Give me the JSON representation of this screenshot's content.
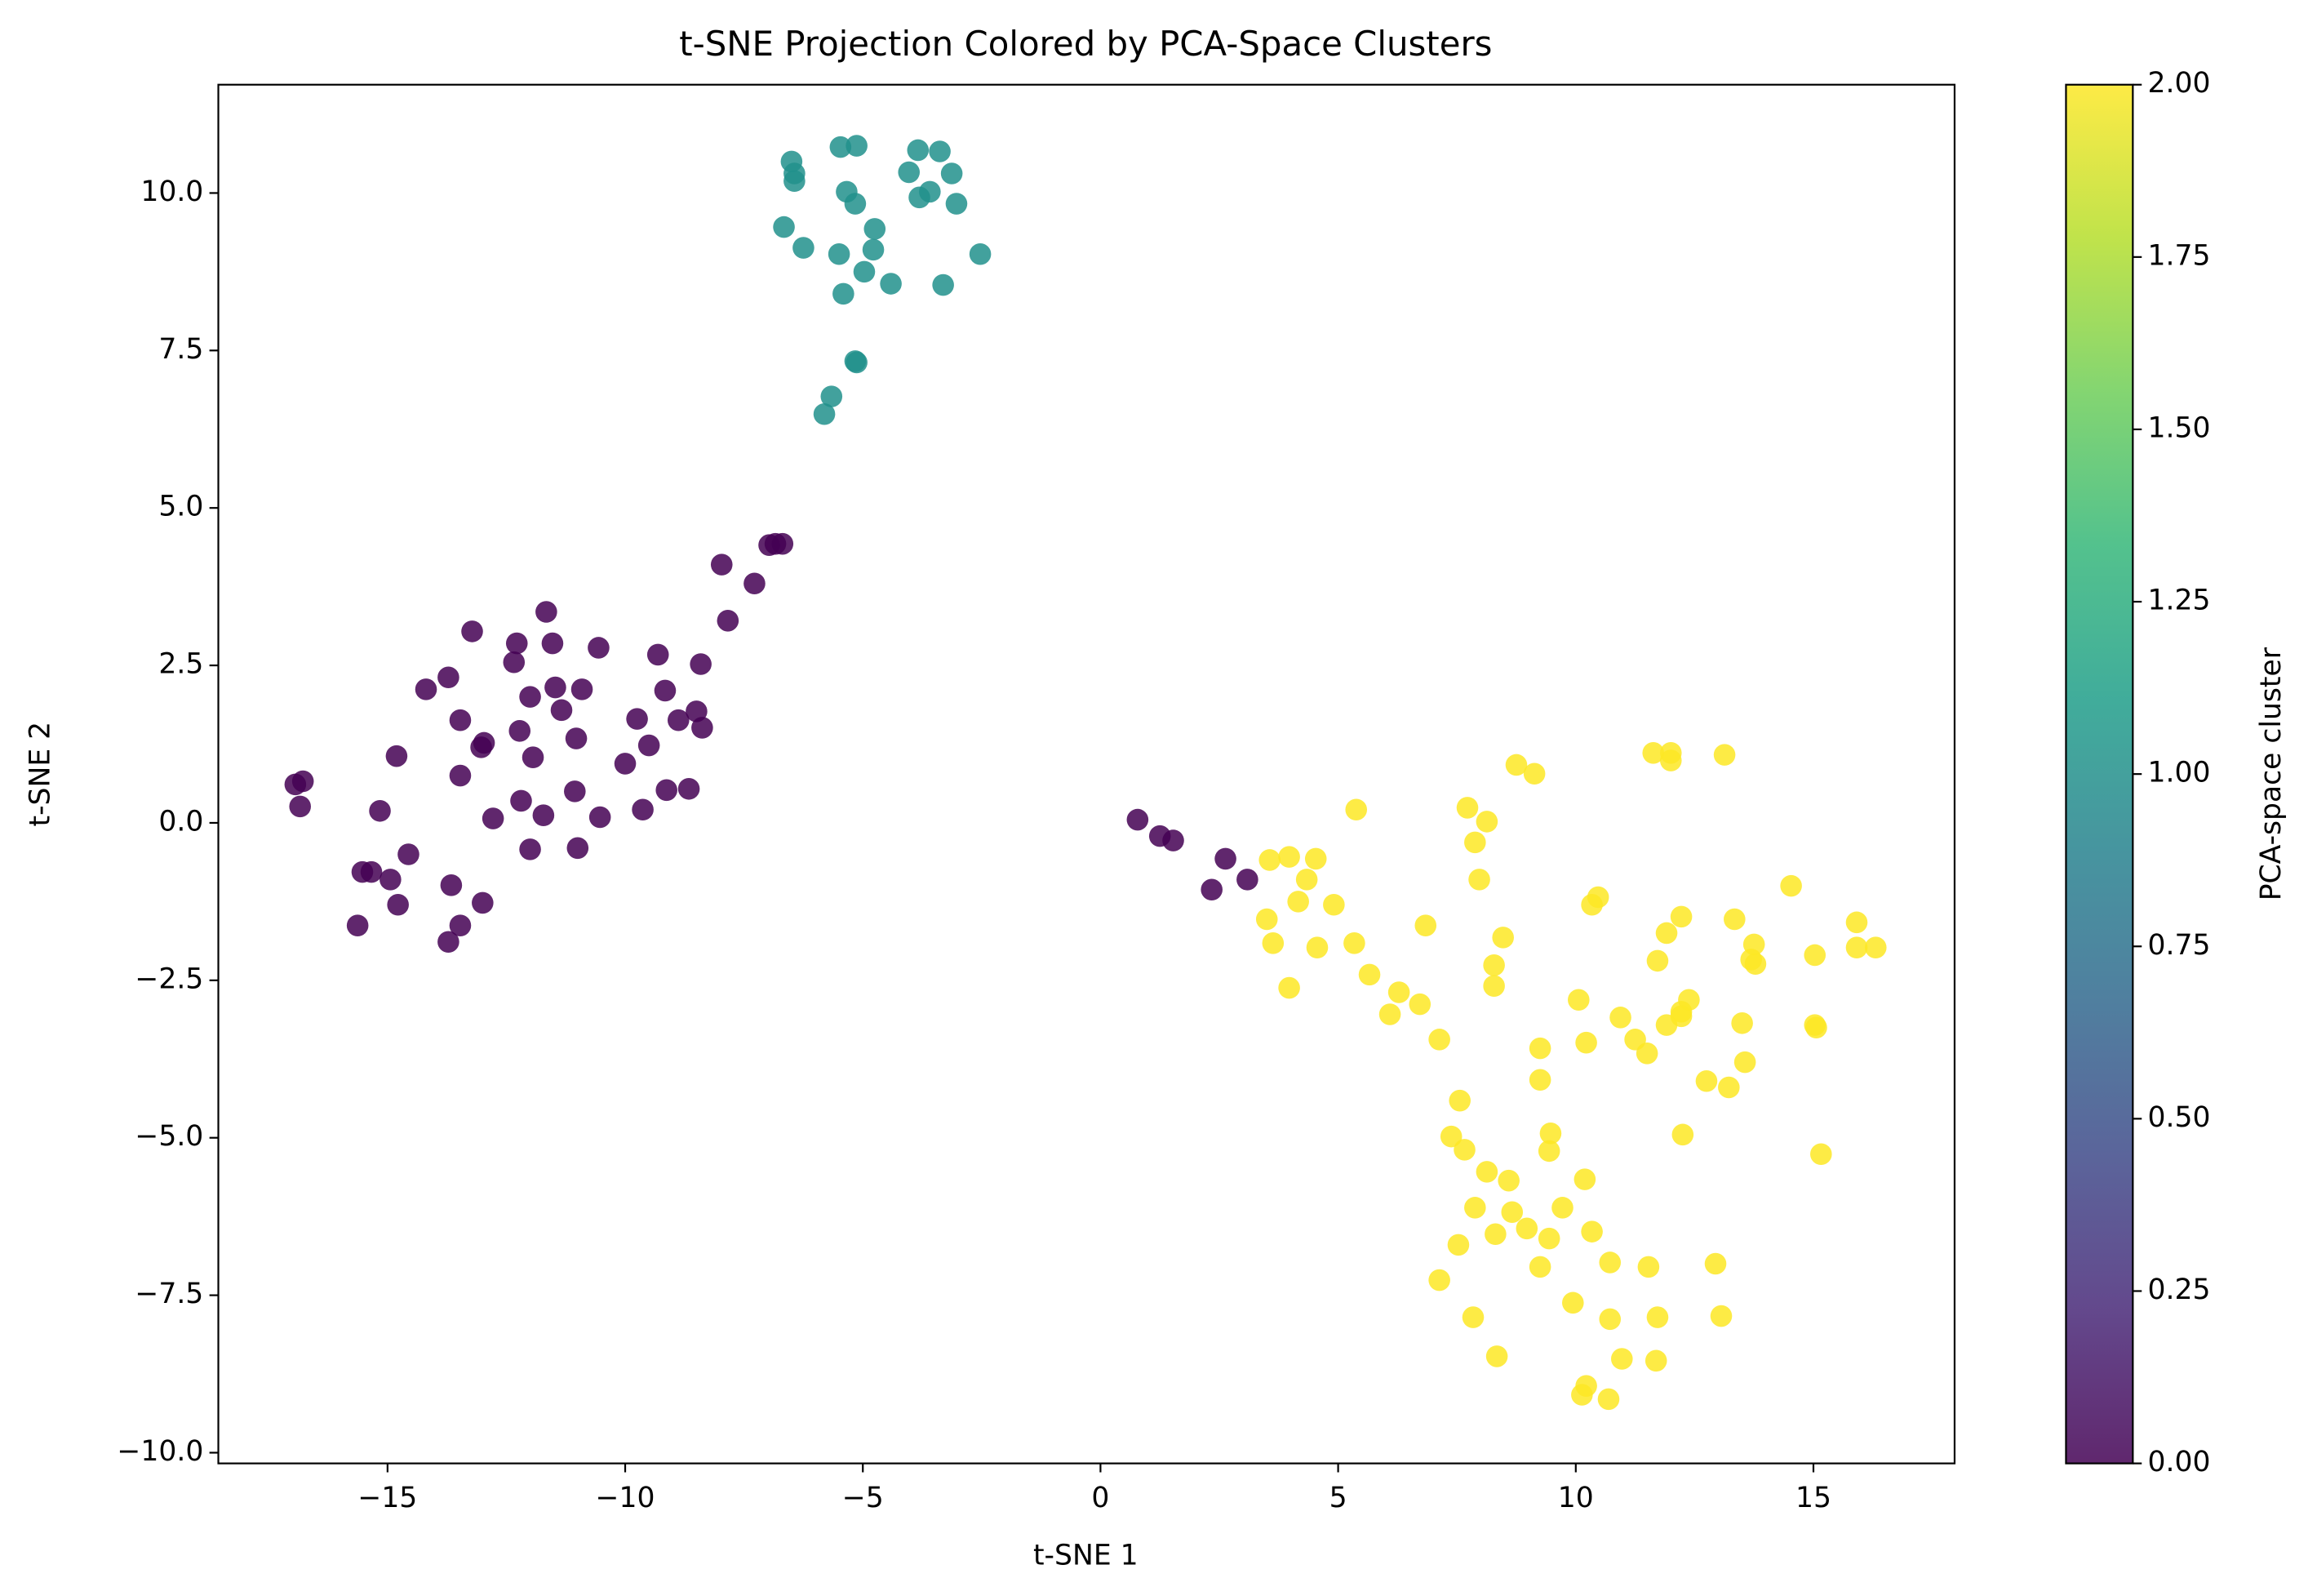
{
  "chart_data": {
    "type": "scatter",
    "title": "t-SNE Projection Colored by PCA-Space Clusters",
    "x_label": "t-SNE 1",
    "y_label": "t-SNE 2",
    "xlim": [
      -18.56,
      17.97
    ],
    "ylim": [
      -10.17,
      11.72
    ],
    "xticks": [
      {
        "value": -15,
        "label": "−15"
      },
      {
        "value": -10,
        "label": "−10"
      },
      {
        "value": -5,
        "label": "−5"
      },
      0,
      5,
      10,
      15
    ],
    "yticks": [
      {
        "value": -10,
        "label": "−10.0"
      },
      {
        "value": -7.5,
        "label": "−7.5"
      },
      {
        "value": -5,
        "label": "−5.0"
      },
      {
        "value": -2.5,
        "label": "−2.5"
      },
      {
        "value": 0,
        "label": "0.0"
      },
      2.5,
      {
        "value": 5,
        "label": "5.0"
      },
      7.5,
      {
        "value": 10,
        "label": "10.0"
      }
    ],
    "alpha": 0.85,
    "series": [
      {
        "color": "#440154",
        "x": [
          -6.84,
          -6.69,
          -6.97,
          -7.97,
          -7.28,
          -7.84,
          -11.66,
          -13.22,
          -12.28,
          -11.53,
          -10.56,
          -9.31,
          -8.41,
          -12.34,
          -13.72,
          -14.19,
          -11.47,
          -10.91,
          -12.0,
          -9.16,
          -11.34,
          -13.47,
          -9.75,
          -8.88,
          -8.5,
          -8.38,
          -12.22,
          -11.03,
          -12.97,
          -13.03,
          -9.5,
          -14.81,
          -10.0,
          -16.94,
          -16.78,
          -13.47,
          -11.94,
          -9.13,
          -8.66,
          -11.06,
          -12.19,
          -16.84,
          -15.16,
          -11.72,
          -12.78,
          -10.53,
          -9.63,
          -12.0,
          -11.0,
          -14.56,
          -15.53,
          -15.34,
          -14.94,
          -13.66,
          -14.78,
          -13.0,
          -15.63,
          -13.47,
          -13.72,
          0.78,
          1.25,
          1.53,
          2.63,
          3.09,
          2.34
        ],
        "values": [
          4.43,
          4.43,
          4.41,
          4.1,
          3.8,
          3.21,
          3.35,
          3.04,
          2.85,
          2.85,
          2.78,
          2.67,
          2.52,
          2.55,
          2.31,
          2.12,
          2.15,
          2.12,
          2.0,
          2.1,
          1.79,
          1.63,
          1.65,
          1.63,
          1.77,
          1.51,
          1.46,
          1.34,
          1.27,
          1.2,
          1.23,
          1.06,
          0.94,
          0.61,
          0.66,
          0.75,
          1.04,
          0.52,
          0.54,
          0.5,
          0.35,
          0.26,
          0.19,
          0.12,
          0.07,
          0.09,
          0.21,
          -0.42,
          -0.4,
          -0.5,
          -0.78,
          -0.78,
          -0.9,
          -0.99,
          -1.3,
          -1.27,
          -1.63,
          -1.63,
          -1.89,
          0.05,
          -0.21,
          -0.28,
          -0.57,
          -0.9,
          -1.06
        ]
      },
      {
        "color": "#21918c",
        "x": [
          -6.5,
          -6.44,
          -6.44,
          -5.47,
          -5.13,
          -3.84,
          -3.38,
          -4.03,
          -3.13,
          -5.34,
          -5.16,
          -3.81,
          -3.59,
          -3.03,
          -6.66,
          -6.25,
          -4.75,
          -5.5,
          -4.78,
          -4.97,
          -2.53,
          -4.41,
          -3.31,
          -5.41,
          -5.16,
          -5.13,
          -5.66,
          -5.81
        ],
        "values": [
          10.5,
          10.31,
          10.19,
          10.73,
          10.75,
          10.68,
          10.66,
          10.33,
          10.31,
          10.02,
          9.83,
          9.93,
          10.02,
          9.83,
          9.46,
          9.13,
          9.43,
          9.03,
          9.1,
          8.75,
          9.03,
          8.56,
          8.54,
          8.4,
          7.33,
          7.31,
          6.77,
          6.49
        ]
      },
      {
        "color": "#fde725",
        "x": [
          11.63,
          12.0,
          12.0,
          13.13,
          8.75,
          9.13,
          5.38,
          7.72,
          8.13,
          7.88,
          3.56,
          3.97,
          4.53,
          4.34,
          7.97,
          4.16,
          4.91,
          10.47,
          10.34,
          14.53,
          3.5,
          6.84,
          8.47,
          12.22,
          13.34,
          11.91,
          15.91,
          3.63,
          4.56,
          5.34,
          13.75,
          15.91,
          16.31,
          15.03,
          11.72,
          13.69,
          13.78,
          8.28,
          5.66,
          8.28,
          3.97,
          6.28,
          10.06,
          12.38,
          6.72,
          6.09,
          12.22,
          10.94,
          11.91,
          12.22,
          13.5,
          15.03,
          15.06,
          7.13,
          11.25,
          10.22,
          9.25,
          11.5,
          13.56,
          12.75,
          13.22,
          9.25,
          7.56,
          9.47,
          12.25,
          7.38,
          9.44,
          7.66,
          15.16,
          8.13,
          8.59,
          10.19,
          7.88,
          9.72,
          8.66,
          8.97,
          8.31,
          10.34,
          9.44,
          7.53,
          10.72,
          9.25,
          11.53,
          12.94,
          7.13,
          9.94,
          7.84,
          10.72,
          11.72,
          13.06,
          10.97,
          11.69,
          8.34,
          10.22,
          10.13,
          10.69
        ],
        "values": [
          1.11,
          1.11,
          0.99,
          1.08,
          0.92,
          0.78,
          0.21,
          0.24,
          0.02,
          -0.31,
          -0.59,
          -0.54,
          -0.57,
          -0.9,
          -0.9,
          -1.25,
          -1.3,
          -1.18,
          -1.3,
          -1.0,
          -1.53,
          -1.63,
          -1.82,
          -1.49,
          -1.53,
          -1.75,
          -1.58,
          -1.91,
          -1.98,
          -1.91,
          -1.93,
          -1.98,
          -1.98,
          -2.1,
          -2.19,
          -2.17,
          -2.24,
          -2.26,
          -2.41,
          -2.59,
          -2.62,
          -2.69,
          -2.81,
          -2.81,
          -2.88,
          -3.04,
          -3.0,
          -3.09,
          -3.21,
          -3.07,
          -3.18,
          -3.21,
          -3.25,
          -3.44,
          -3.44,
          -3.49,
          -3.58,
          -3.66,
          -3.8,
          -4.1,
          -4.2,
          -4.08,
          -4.41,
          -4.93,
          -4.95,
          -4.98,
          -5.21,
          -5.19,
          -5.26,
          -5.54,
          -5.68,
          -5.66,
          -6.11,
          -6.11,
          -6.18,
          -6.44,
          -6.53,
          -6.49,
          -6.6,
          -6.7,
          -6.98,
          -7.05,
          -7.05,
          -7.0,
          -7.26,
          -7.62,
          -7.85,
          -7.88,
          -7.85,
          -7.83,
          -8.51,
          -8.54,
          -8.47,
          -8.94,
          -9.08,
          -9.15
        ]
      }
    ],
    "colorbar": {
      "label": "PCA-space cluster",
      "lim": [
        0,
        2
      ],
      "ticks": [
        {
          "value": 0,
          "label": "0.00"
        },
        0.25,
        {
          "value": 0.5,
          "label": "0.50"
        },
        0.75,
        {
          "value": 1,
          "label": "1.00"
        },
        1.25,
        {
          "value": 1.5,
          "label": "1.50"
        },
        1.75,
        {
          "value": 2,
          "label": "2.00"
        }
      ],
      "colors": [
        "#440154",
        "#482878",
        "#3e4989",
        "#31688e",
        "#26828e",
        "#1f9e89",
        "#35b779",
        "#6ece58",
        "#b5de2b",
        "#fde725"
      ]
    }
  }
}
